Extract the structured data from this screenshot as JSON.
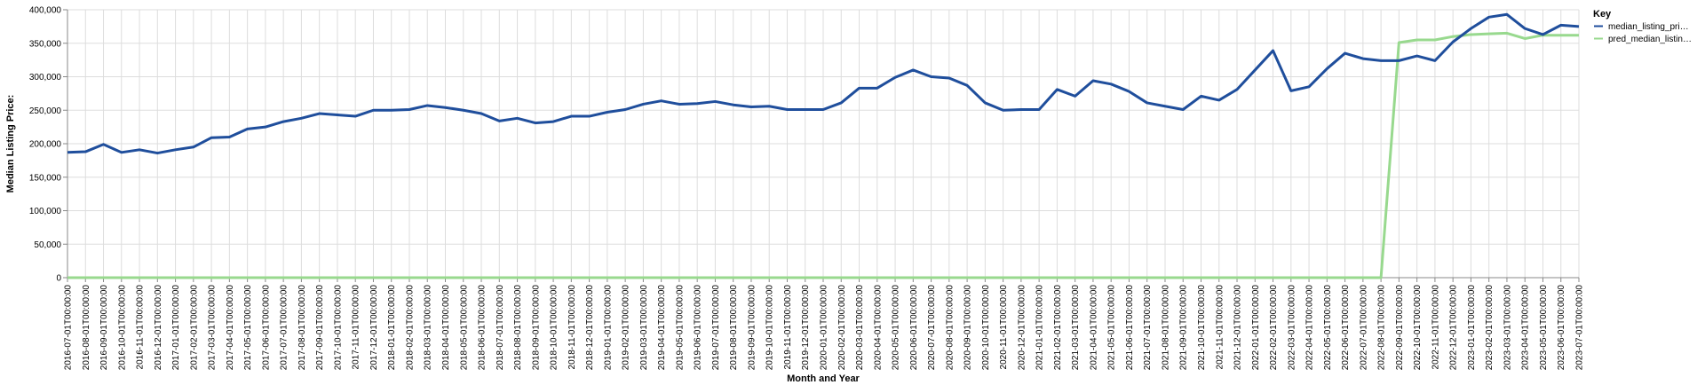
{
  "chart_data": {
    "type": "line",
    "title": "",
    "xlabel": "Month and Year",
    "ylabel": "Median Listing Price:",
    "ylim": [
      0,
      400000
    ],
    "y_ticks": [
      0,
      50000,
      100000,
      150000,
      200000,
      250000,
      300000,
      350000,
      400000
    ],
    "y_tick_labels": [
      "0",
      "50,000",
      "100,000",
      "150,000",
      "200,000",
      "250,000",
      "300,000",
      "350,000",
      "400,000"
    ],
    "grid": true,
    "legend": {
      "title": "Key",
      "placement": "top-right",
      "entries": [
        {
          "label": "median_listing_pri…",
          "series": "median_listing_price"
        },
        {
          "label": "pred_median_listin…",
          "series": "pred_median_listing_price"
        }
      ]
    },
    "categories": [
      "2016-07-01T00:00:00",
      "2016-08-01T00:00:00",
      "2016-09-01T00:00:00",
      "2016-10-01T00:00:00",
      "2016-11-01T00:00:00",
      "2016-12-01T00:00:00",
      "2017-01-01T00:00:00",
      "2017-02-01T00:00:00",
      "2017-03-01T00:00:00",
      "2017-04-01T00:00:00",
      "2017-05-01T00:00:00",
      "2017-06-01T00:00:00",
      "2017-07-01T00:00:00",
      "2017-08-01T00:00:00",
      "2017-09-01T00:00:00",
      "2017-10-01T00:00:00",
      "2017-11-01T00:00:00",
      "2017-12-01T00:00:00",
      "2018-01-01T00:00:00",
      "2018-02-01T00:00:00",
      "2018-03-01T00:00:00",
      "2018-04-01T00:00:00",
      "2018-05-01T00:00:00",
      "2018-06-01T00:00:00",
      "2018-07-01T00:00:00",
      "2018-08-01T00:00:00",
      "2018-09-01T00:00:00",
      "2018-10-01T00:00:00",
      "2018-11-01T00:00:00",
      "2018-12-01T00:00:00",
      "2019-01-01T00:00:00",
      "2019-02-01T00:00:00",
      "2019-03-01T00:00:00",
      "2019-04-01T00:00:00",
      "2019-05-01T00:00:00",
      "2019-06-01T00:00:00",
      "2019-07-01T00:00:00",
      "2019-08-01T00:00:00",
      "2019-09-01T00:00:00",
      "2019-10-01T00:00:00",
      "2019-11-01T00:00:00",
      "2019-12-01T00:00:00",
      "2020-01-01T00:00:00",
      "2020-02-01T00:00:00",
      "2020-03-01T00:00:00",
      "2020-04-01T00:00:00",
      "2020-05-01T00:00:00",
      "2020-06-01T00:00:00",
      "2020-07-01T00:00:00",
      "2020-08-01T00:00:00",
      "2020-09-01T00:00:00",
      "2020-10-01T00:00:00",
      "2020-11-01T00:00:00",
      "2020-12-01T00:00:00",
      "2021-01-01T00:00:00",
      "2021-02-01T00:00:00",
      "2021-03-01T00:00:00",
      "2021-04-01T00:00:00",
      "2021-05-01T00:00:00",
      "2021-06-01T00:00:00",
      "2021-07-01T00:00:00",
      "2021-08-01T00:00:00",
      "2021-09-01T00:00:00",
      "2021-10-01T00:00:00",
      "2021-11-01T00:00:00",
      "2021-12-01T00:00:00",
      "2022-01-01T00:00:00",
      "2022-02-01T00:00:00",
      "2022-03-01T00:00:00",
      "2022-04-01T00:00:00",
      "2022-05-01T00:00:00",
      "2022-06-01T00:00:00",
      "2022-07-01T00:00:00",
      "2022-08-01T00:00:00",
      "2022-09-01T00:00:00",
      "2022-10-01T00:00:00",
      "2022-11-01T00:00:00",
      "2022-12-01T00:00:00",
      "2023-01-01T00:00:00",
      "2023-02-01T00:00:00",
      "2023-03-01T00:00:00",
      "2023-04-01T00:00:00",
      "2023-05-01T00:00:00",
      "2023-06-01T00:00:00",
      "2023-07-01T00:00:00"
    ],
    "series": [
      {
        "name": "median_listing_price",
        "color": "#1f4e9c",
        "values": [
          187000,
          188000,
          199000,
          187000,
          191000,
          186000,
          191000,
          195000,
          209000,
          210000,
          222000,
          225000,
          233000,
          238000,
          245000,
          243000,
          241000,
          250000,
          250000,
          251000,
          257000,
          254000,
          250000,
          245000,
          234000,
          238000,
          231000,
          233000,
          241000,
          241000,
          247000,
          251000,
          259000,
          264000,
          259000,
          260000,
          263000,
          258000,
          255000,
          256000,
          251000,
          251000,
          251000,
          261000,
          283000,
          283000,
          299000,
          310000,
          300000,
          298000,
          287000,
          261000,
          250000,
          251000,
          251000,
          281000,
          271000,
          294000,
          289000,
          278000,
          261000,
          256000,
          251000,
          271000,
          265000,
          281000,
          310000,
          339000,
          279000,
          285000,
          312000,
          335000,
          327000,
          324000,
          324000,
          331000,
          324000,
          352000,
          372000,
          389000,
          393000,
          372000,
          363000,
          377000,
          375000
        ]
      },
      {
        "name": "pred_median_listing_price",
        "color": "#98d98e",
        "values": [
          0,
          0,
          0,
          0,
          0,
          0,
          0,
          0,
          0,
          0,
          0,
          0,
          0,
          0,
          0,
          0,
          0,
          0,
          0,
          0,
          0,
          0,
          0,
          0,
          0,
          0,
          0,
          0,
          0,
          0,
          0,
          0,
          0,
          0,
          0,
          0,
          0,
          0,
          0,
          0,
          0,
          0,
          0,
          0,
          0,
          0,
          0,
          0,
          0,
          0,
          0,
          0,
          0,
          0,
          0,
          0,
          0,
          0,
          0,
          0,
          0,
          0,
          0,
          0,
          0,
          0,
          0,
          0,
          0,
          0,
          0,
          0,
          0,
          0,
          351000,
          355000,
          355000,
          360000,
          363000,
          364000,
          365000,
          357000,
          362000,
          362000,
          362000
        ]
      }
    ]
  }
}
